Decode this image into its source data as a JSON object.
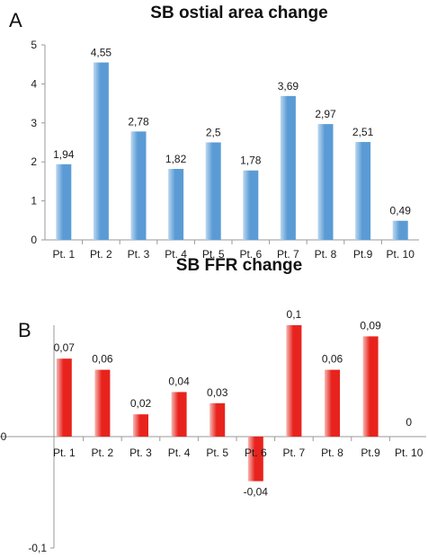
{
  "panels": [
    {
      "letter": "A",
      "title": "SB ostial area change"
    },
    {
      "letter": "B",
      "title": "SB FFR change"
    }
  ],
  "colors": {
    "bar_a": "#5b9bd5",
    "bar_a_light": "#bcd8f1",
    "bar_b": "#e8231d",
    "bar_b_light": "#f7b8b4"
  },
  "chart_data": [
    {
      "type": "bar",
      "title": "SB ostial area change",
      "categories": [
        "Pt. 1",
        "Pt. 2",
        "Pt. 3",
        "Pt. 4",
        "Pt. 5",
        "Pt. 6",
        "Pt. 7",
        "Pt. 8",
        "Pt.9",
        "Pt. 10"
      ],
      "values": [
        1.94,
        4.55,
        2.78,
        1.82,
        2.5,
        1.78,
        3.69,
        2.97,
        2.51,
        0.49
      ],
      "value_labels": [
        "1,94",
        "4,55",
        "2,78",
        "1,82",
        "2,5",
        "1,78",
        "3,69",
        "2,97",
        "2,51",
        "0,49"
      ],
      "ylim": [
        0,
        5
      ],
      "yticks": [
        "0",
        "1",
        "2",
        "3",
        "4",
        "5"
      ],
      "xlabel": "",
      "ylabel": "",
      "grid": false
    },
    {
      "type": "bar",
      "title": "SB FFR change",
      "categories": [
        "Pt. 1",
        "Pt. 2",
        "Pt. 3",
        "Pt. 4",
        "Pt. 5",
        "Pt. 6",
        "Pt. 7",
        "Pt. 8",
        "Pt.9",
        "Pt. 10"
      ],
      "values": [
        0.07,
        0.06,
        0.02,
        0.04,
        0.03,
        -0.04,
        0.1,
        0.06,
        0.09,
        0
      ],
      "value_labels": [
        "0,07",
        "0,06",
        "0,02",
        "0,04",
        "0,03",
        "-0,04",
        "0,1",
        "0,06",
        "0,09",
        "0"
      ],
      "ylim": [
        -0.1,
        0.1
      ],
      "yticks": [
        "-0,1",
        "0"
      ],
      "xlabel": "",
      "ylabel": "",
      "grid": false
    }
  ]
}
